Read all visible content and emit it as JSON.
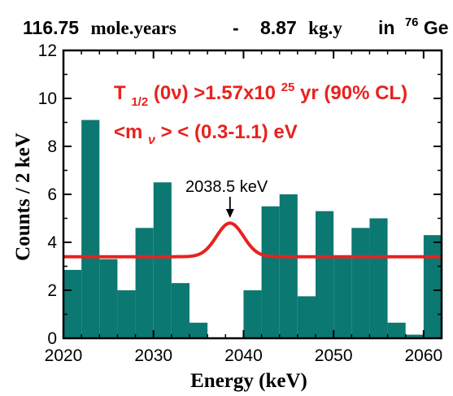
{
  "header": {
    "exposure_moles": "116.75",
    "exposure_moles_unit": "mole.years",
    "separator": "-",
    "exposure_mass": "8.87",
    "exposure_mass_unit": "kg.y",
    "isotope_prefix": "in",
    "isotope_mass_number": "76",
    "isotope_symbol": "Ge"
  },
  "annotations": {
    "halflife": {
      "symbol": "T",
      "subscript": "1/2",
      "mode": "(0ν)",
      "relation": " >1.57x10",
      "exponent": "25",
      "unit_cl": " yr (90% CL)"
    },
    "mass": {
      "open": "<m",
      "subscript": "ν",
      "rest": "> < (0.3-1.1) eV"
    },
    "peak_label": "2038.5 keV"
  },
  "colors": {
    "bars": "#0c7872",
    "fit_line": "#e8221e",
    "text_red": "#e8221e",
    "axis": "#000000"
  },
  "chart_data": {
    "type": "bar",
    "xlabel": "Energy (keV)",
    "ylabel": "Counts / 2 keV",
    "xlim": [
      2020,
      2062
    ],
    "ylim": [
      0,
      12
    ],
    "x_ticks": [
      "2020",
      "2030",
      "2040",
      "2050",
      "2060"
    ],
    "y_ticks": [
      "0",
      "2",
      "4",
      "6",
      "8",
      "10",
      "12"
    ],
    "bin_width": 2,
    "bin_starts": [
      2020,
      2022,
      2024,
      2026,
      2028,
      2030,
      2032,
      2034,
      2036,
      2038,
      2040,
      2042,
      2044,
      2046,
      2048,
      2050,
      2052,
      2054,
      2056,
      2058,
      2060
    ],
    "values": [
      2.85,
      9.1,
      3.3,
      2.0,
      4.6,
      6.5,
      2.3,
      0.65,
      0,
      0,
      2.0,
      5.5,
      6.0,
      1.75,
      5.3,
      3.4,
      4.6,
      5.0,
      0.65,
      0.15,
      4.3
    ],
    "fit": {
      "baseline": 3.4,
      "peak_center": 2038.5,
      "peak_height": 1.4,
      "peak_sigma": 1.5
    },
    "peak_marker_x": 2038.5
  }
}
